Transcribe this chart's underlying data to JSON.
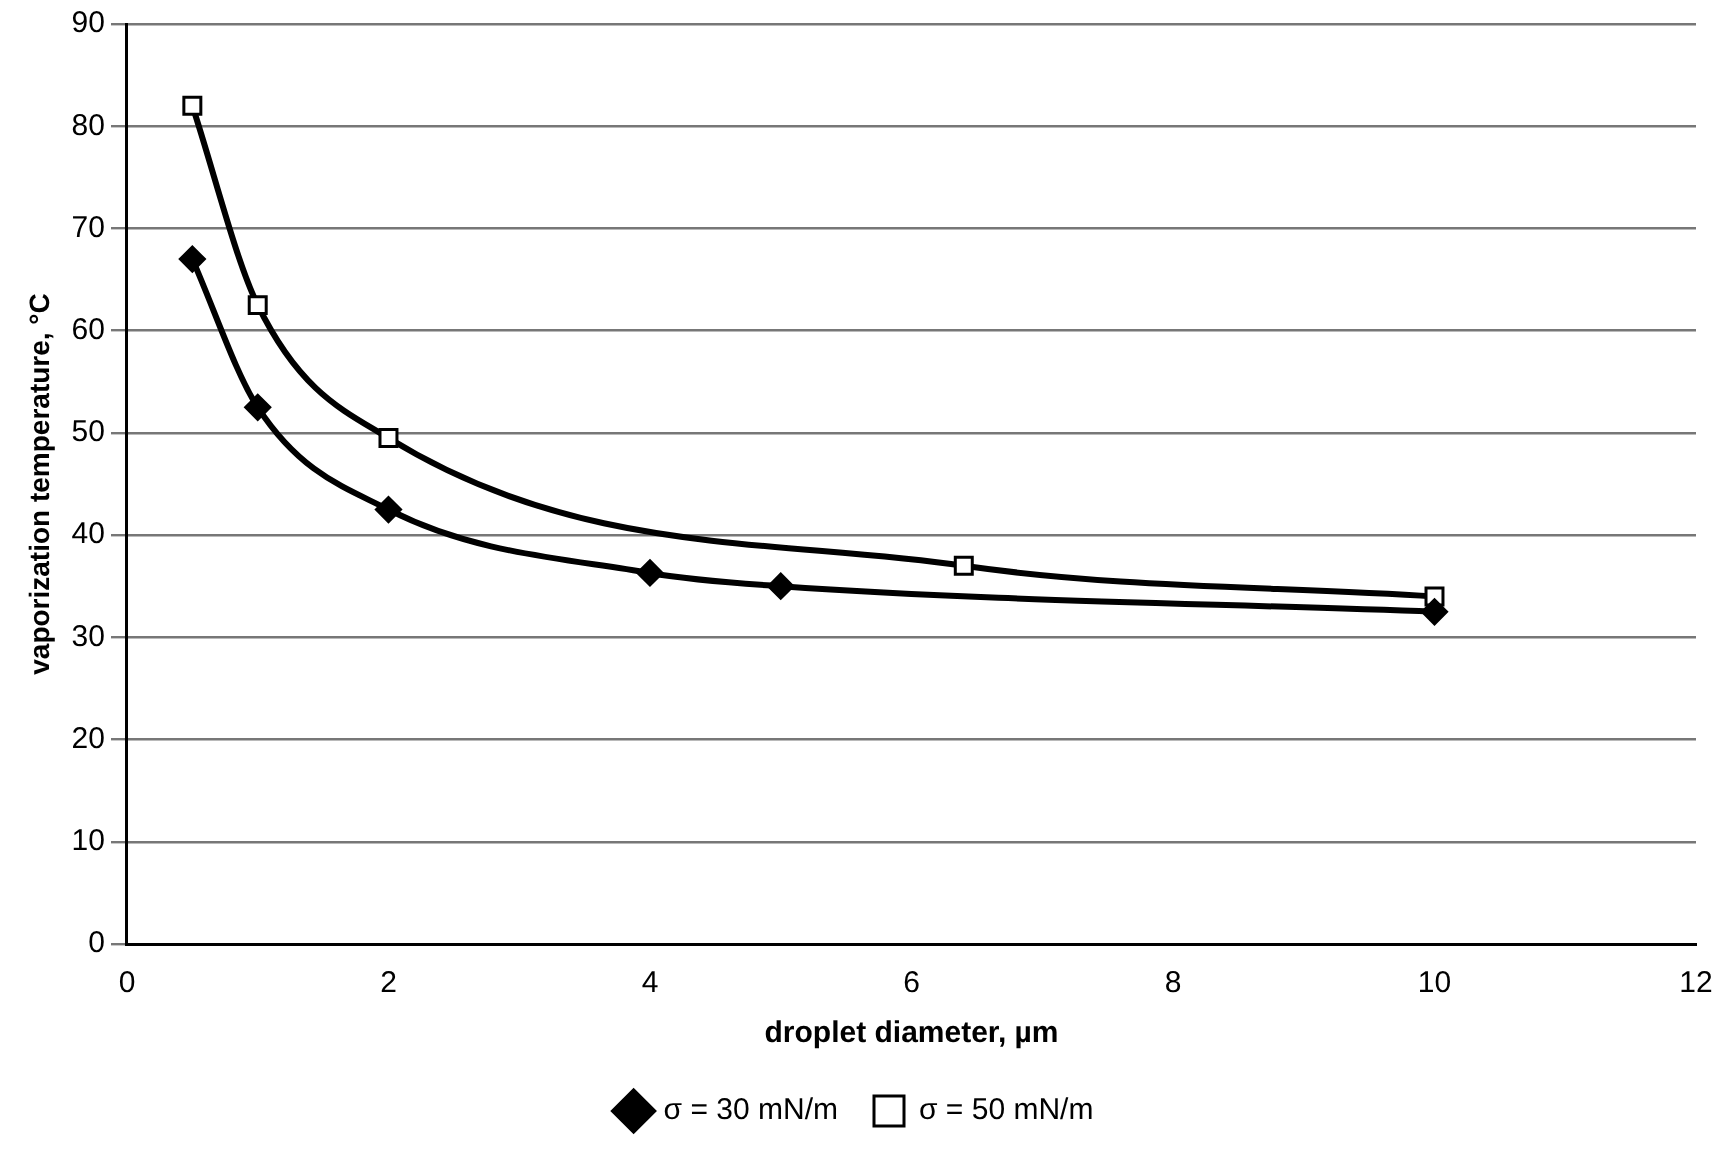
{
  "chart_data": {
    "type": "line",
    "xlabel": "droplet diameter, µm",
    "ylabel": "vaporization temperature, °C",
    "series": [
      {
        "name": "σ = 30 mN/m",
        "color": "#000000",
        "marker": "diamond",
        "x": [
          0.5,
          1,
          2,
          4,
          5,
          10
        ],
        "values": [
          67,
          52.5,
          42.5,
          36.3,
          35,
          32.5
        ]
      },
      {
        "name": "σ = 50 mN/m",
        "color": "#000000",
        "marker": "square",
        "x": [
          0.5,
          1,
          2,
          6.4,
          10
        ],
        "values": [
          82,
          62.5,
          49.5,
          37,
          34
        ]
      }
    ],
    "xlim": [
      0,
      12
    ],
    "xticks": [
      0,
      2,
      4,
      6,
      8,
      10,
      12
    ],
    "ylim": [
      0,
      90
    ],
    "yticks": [
      0,
      10,
      20,
      30,
      40,
      50,
      60,
      70,
      80,
      90
    ],
    "grid": "y",
    "legend": "bottom"
  }
}
